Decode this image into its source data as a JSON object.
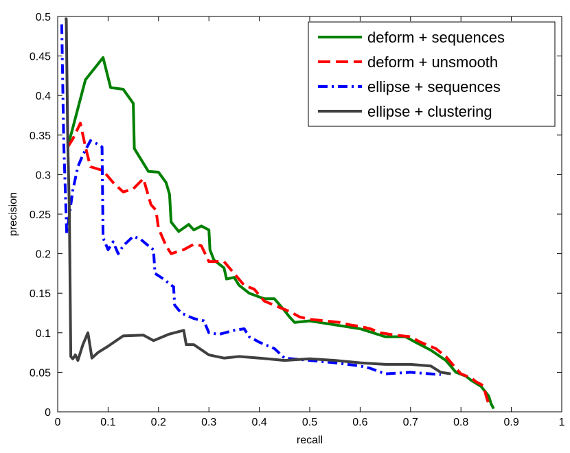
{
  "chart_data": {
    "type": "line",
    "xlabel": "recall",
    "ylabel": "precision",
    "xlim": [
      0,
      1
    ],
    "ylim": [
      0,
      0.5
    ],
    "grid": false,
    "legend_position": "top-right",
    "x_ticks": [
      "0",
      "0.1",
      "0.2",
      "0.3",
      "0.4",
      "0.5",
      "0.6",
      "0.7",
      "0.8",
      "0.9",
      "1"
    ],
    "y_ticks": [
      "0",
      "0.05",
      "0.1",
      "0.15",
      "0.2",
      "0.25",
      "0.3",
      "0.35",
      "0.4",
      "0.45",
      "0.5"
    ],
    "series": [
      {
        "name": "deform + sequences",
        "color": "#008000",
        "dash": "solid",
        "points": [
          [
            0.02,
            0.335
          ],
          [
            0.055,
            0.42
          ],
          [
            0.09,
            0.448
          ],
          [
            0.105,
            0.41
          ],
          [
            0.13,
            0.408
          ],
          [
            0.15,
            0.39
          ],
          [
            0.152,
            0.333
          ],
          [
            0.18,
            0.304
          ],
          [
            0.2,
            0.303
          ],
          [
            0.215,
            0.29
          ],
          [
            0.222,
            0.275
          ],
          [
            0.225,
            0.24
          ],
          [
            0.24,
            0.228
          ],
          [
            0.26,
            0.237
          ],
          [
            0.27,
            0.23
          ],
          [
            0.285,
            0.235
          ],
          [
            0.3,
            0.23
          ],
          [
            0.302,
            0.205
          ],
          [
            0.31,
            0.192
          ],
          [
            0.33,
            0.182
          ],
          [
            0.335,
            0.168
          ],
          [
            0.35,
            0.17
          ],
          [
            0.36,
            0.16
          ],
          [
            0.38,
            0.15
          ],
          [
            0.41,
            0.143
          ],
          [
            0.43,
            0.143
          ],
          [
            0.45,
            0.128
          ],
          [
            0.46,
            0.12
          ],
          [
            0.47,
            0.113
          ],
          [
            0.5,
            0.115
          ],
          [
            0.55,
            0.11
          ],
          [
            0.6,
            0.105
          ],
          [
            0.65,
            0.095
          ],
          [
            0.69,
            0.095
          ],
          [
            0.71,
            0.088
          ],
          [
            0.74,
            0.078
          ],
          [
            0.77,
            0.065
          ],
          [
            0.79,
            0.05
          ],
          [
            0.81,
            0.045
          ],
          [
            0.82,
            0.04
          ],
          [
            0.84,
            0.032
          ],
          [
            0.855,
            0.02
          ],
          [
            0.86,
            0.01
          ],
          [
            0.865,
            0.004
          ]
        ]
      },
      {
        "name": "deform + unsmooth",
        "color": "#ff0000",
        "dash": "long",
        "points": [
          [
            0.02,
            0.335
          ],
          [
            0.03,
            0.345
          ],
          [
            0.045,
            0.365
          ],
          [
            0.055,
            0.335
          ],
          [
            0.065,
            0.31
          ],
          [
            0.09,
            0.305
          ],
          [
            0.11,
            0.29
          ],
          [
            0.13,
            0.278
          ],
          [
            0.15,
            0.282
          ],
          [
            0.17,
            0.295
          ],
          [
            0.185,
            0.262
          ],
          [
            0.195,
            0.255
          ],
          [
            0.2,
            0.232
          ],
          [
            0.215,
            0.21
          ],
          [
            0.225,
            0.2
          ],
          [
            0.25,
            0.205
          ],
          [
            0.27,
            0.212
          ],
          [
            0.285,
            0.21
          ],
          [
            0.3,
            0.19
          ],
          [
            0.33,
            0.19
          ],
          [
            0.35,
            0.175
          ],
          [
            0.37,
            0.16
          ],
          [
            0.39,
            0.155
          ],
          [
            0.41,
            0.14
          ],
          [
            0.44,
            0.132
          ],
          [
            0.46,
            0.127
          ],
          [
            0.48,
            0.12
          ],
          [
            0.5,
            0.117
          ],
          [
            0.53,
            0.115
          ],
          [
            0.56,
            0.113
          ],
          [
            0.58,
            0.11
          ],
          [
            0.6,
            0.108
          ],
          [
            0.62,
            0.105
          ],
          [
            0.64,
            0.1
          ],
          [
            0.67,
            0.097
          ],
          [
            0.7,
            0.095
          ],
          [
            0.72,
            0.088
          ],
          [
            0.75,
            0.08
          ],
          [
            0.77,
            0.07
          ],
          [
            0.79,
            0.055
          ],
          [
            0.8,
            0.048
          ],
          [
            0.82,
            0.043
          ],
          [
            0.83,
            0.038
          ],
          [
            0.845,
            0.033
          ],
          [
            0.85,
            0.02
          ],
          [
            0.855,
            0.01
          ]
        ]
      },
      {
        "name": "ellipse + sequences",
        "color": "#0000ff",
        "dash": "dashdot",
        "points": [
          [
            0.008,
            0.49
          ],
          [
            0.012,
            0.34
          ],
          [
            0.018,
            0.225
          ],
          [
            0.03,
            0.28
          ],
          [
            0.04,
            0.31
          ],
          [
            0.05,
            0.325
          ],
          [
            0.065,
            0.343
          ],
          [
            0.075,
            0.34
          ],
          [
            0.088,
            0.335
          ],
          [
            0.09,
            0.22
          ],
          [
            0.1,
            0.205
          ],
          [
            0.11,
            0.215
          ],
          [
            0.12,
            0.2
          ],
          [
            0.13,
            0.21
          ],
          [
            0.15,
            0.222
          ],
          [
            0.165,
            0.218
          ],
          [
            0.18,
            0.21
          ],
          [
            0.19,
            0.205
          ],
          [
            0.193,
            0.175
          ],
          [
            0.21,
            0.168
          ],
          [
            0.23,
            0.158
          ],
          [
            0.232,
            0.135
          ],
          [
            0.245,
            0.125
          ],
          [
            0.27,
            0.118
          ],
          [
            0.29,
            0.115
          ],
          [
            0.3,
            0.1
          ],
          [
            0.32,
            0.098
          ],
          [
            0.35,
            0.103
          ],
          [
            0.37,
            0.105
          ],
          [
            0.38,
            0.095
          ],
          [
            0.4,
            0.088
          ],
          [
            0.43,
            0.08
          ],
          [
            0.45,
            0.068
          ],
          [
            0.5,
            0.065
          ],
          [
            0.55,
            0.062
          ],
          [
            0.6,
            0.058
          ],
          [
            0.62,
            0.055
          ],
          [
            0.65,
            0.048
          ],
          [
            0.7,
            0.05
          ],
          [
            0.76,
            0.047
          ]
        ]
      },
      {
        "name": "ellipse + clustering",
        "color": "#404040",
        "dash": "solid",
        "points": [
          [
            0.014,
            0.497
          ],
          [
            0.017,
            0.497
          ],
          [
            0.02,
            0.34
          ],
          [
            0.023,
            0.26
          ],
          [
            0.026,
            0.07
          ],
          [
            0.03,
            0.067
          ],
          [
            0.035,
            0.072
          ],
          [
            0.04,
            0.065
          ],
          [
            0.05,
            0.085
          ],
          [
            0.06,
            0.1
          ],
          [
            0.068,
            0.068
          ],
          [
            0.08,
            0.075
          ],
          [
            0.1,
            0.083
          ],
          [
            0.13,
            0.096
          ],
          [
            0.17,
            0.097
          ],
          [
            0.19,
            0.09
          ],
          [
            0.22,
            0.098
          ],
          [
            0.25,
            0.103
          ],
          [
            0.255,
            0.085
          ],
          [
            0.27,
            0.085
          ],
          [
            0.3,
            0.072
          ],
          [
            0.33,
            0.068
          ],
          [
            0.36,
            0.07
          ],
          [
            0.4,
            0.068
          ],
          [
            0.45,
            0.065
          ],
          [
            0.5,
            0.067
          ],
          [
            0.55,
            0.065
          ],
          [
            0.6,
            0.062
          ],
          [
            0.65,
            0.06
          ],
          [
            0.7,
            0.06
          ],
          [
            0.74,
            0.058
          ],
          [
            0.76,
            0.05
          ],
          [
            0.78,
            0.048
          ]
        ]
      }
    ]
  }
}
